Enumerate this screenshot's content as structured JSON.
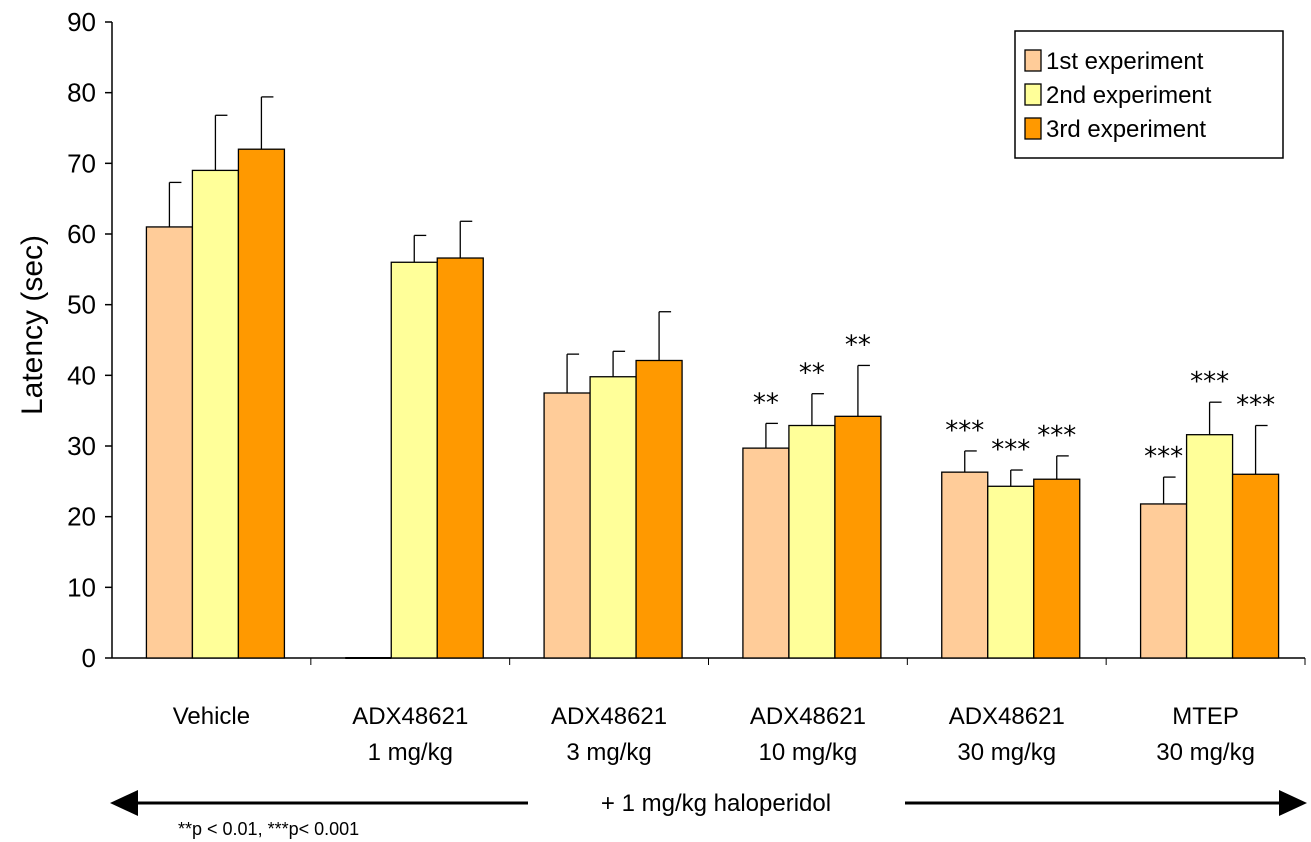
{
  "chart_data": {
    "type": "bar",
    "categories": [
      [
        "Vehicle"
      ],
      [
        "ADX48621",
        "1 mg/kg"
      ],
      [
        "ADX48621",
        "3 mg/kg"
      ],
      [
        "ADX48621",
        "10 mg/kg"
      ],
      [
        "ADX48621",
        "30 mg/kg"
      ],
      [
        "MTEP",
        "30 mg/kg"
      ]
    ],
    "series": [
      {
        "name": "1st experiment",
        "color": "#FFCC99",
        "values": [
          61,
          0,
          37.5,
          29.7,
          26.3,
          21.8
        ],
        "errors": [
          6.3,
          0,
          5.5,
          3.5,
          3.0,
          3.8
        ],
        "significance": [
          "",
          "",
          "",
          "**",
          "***",
          "***"
        ]
      },
      {
        "name": "2nd experiment",
        "color": "#FFFF99",
        "values": [
          69,
          56,
          39.8,
          32.9,
          24.3,
          31.6
        ],
        "errors": [
          7.8,
          3.8,
          3.6,
          4.5,
          2.3,
          4.6
        ],
        "significance": [
          "",
          "",
          "",
          "**",
          "***",
          "***"
        ]
      },
      {
        "name": "3rd experiment",
        "color": "#FF9900",
        "values": [
          72,
          56.6,
          42.1,
          34.2,
          25.3,
          26.0
        ],
        "errors": [
          7.4,
          5.2,
          6.9,
          7.2,
          3.3,
          6.9
        ],
        "significance": [
          "",
          "",
          "",
          "**",
          "***",
          "***"
        ]
      }
    ],
    "ylabel": "Latency (sec)",
    "ylim": [
      0,
      90
    ],
    "yticks": [
      0,
      10,
      20,
      30,
      40,
      50,
      60,
      70,
      80,
      90
    ],
    "grid": false,
    "legend_position": "top-right",
    "annotations": {
      "arrow_label": "+ 1 mg/kg haloperidol",
      "footnote": "**p < 0.01, ***p< 0.001"
    }
  }
}
